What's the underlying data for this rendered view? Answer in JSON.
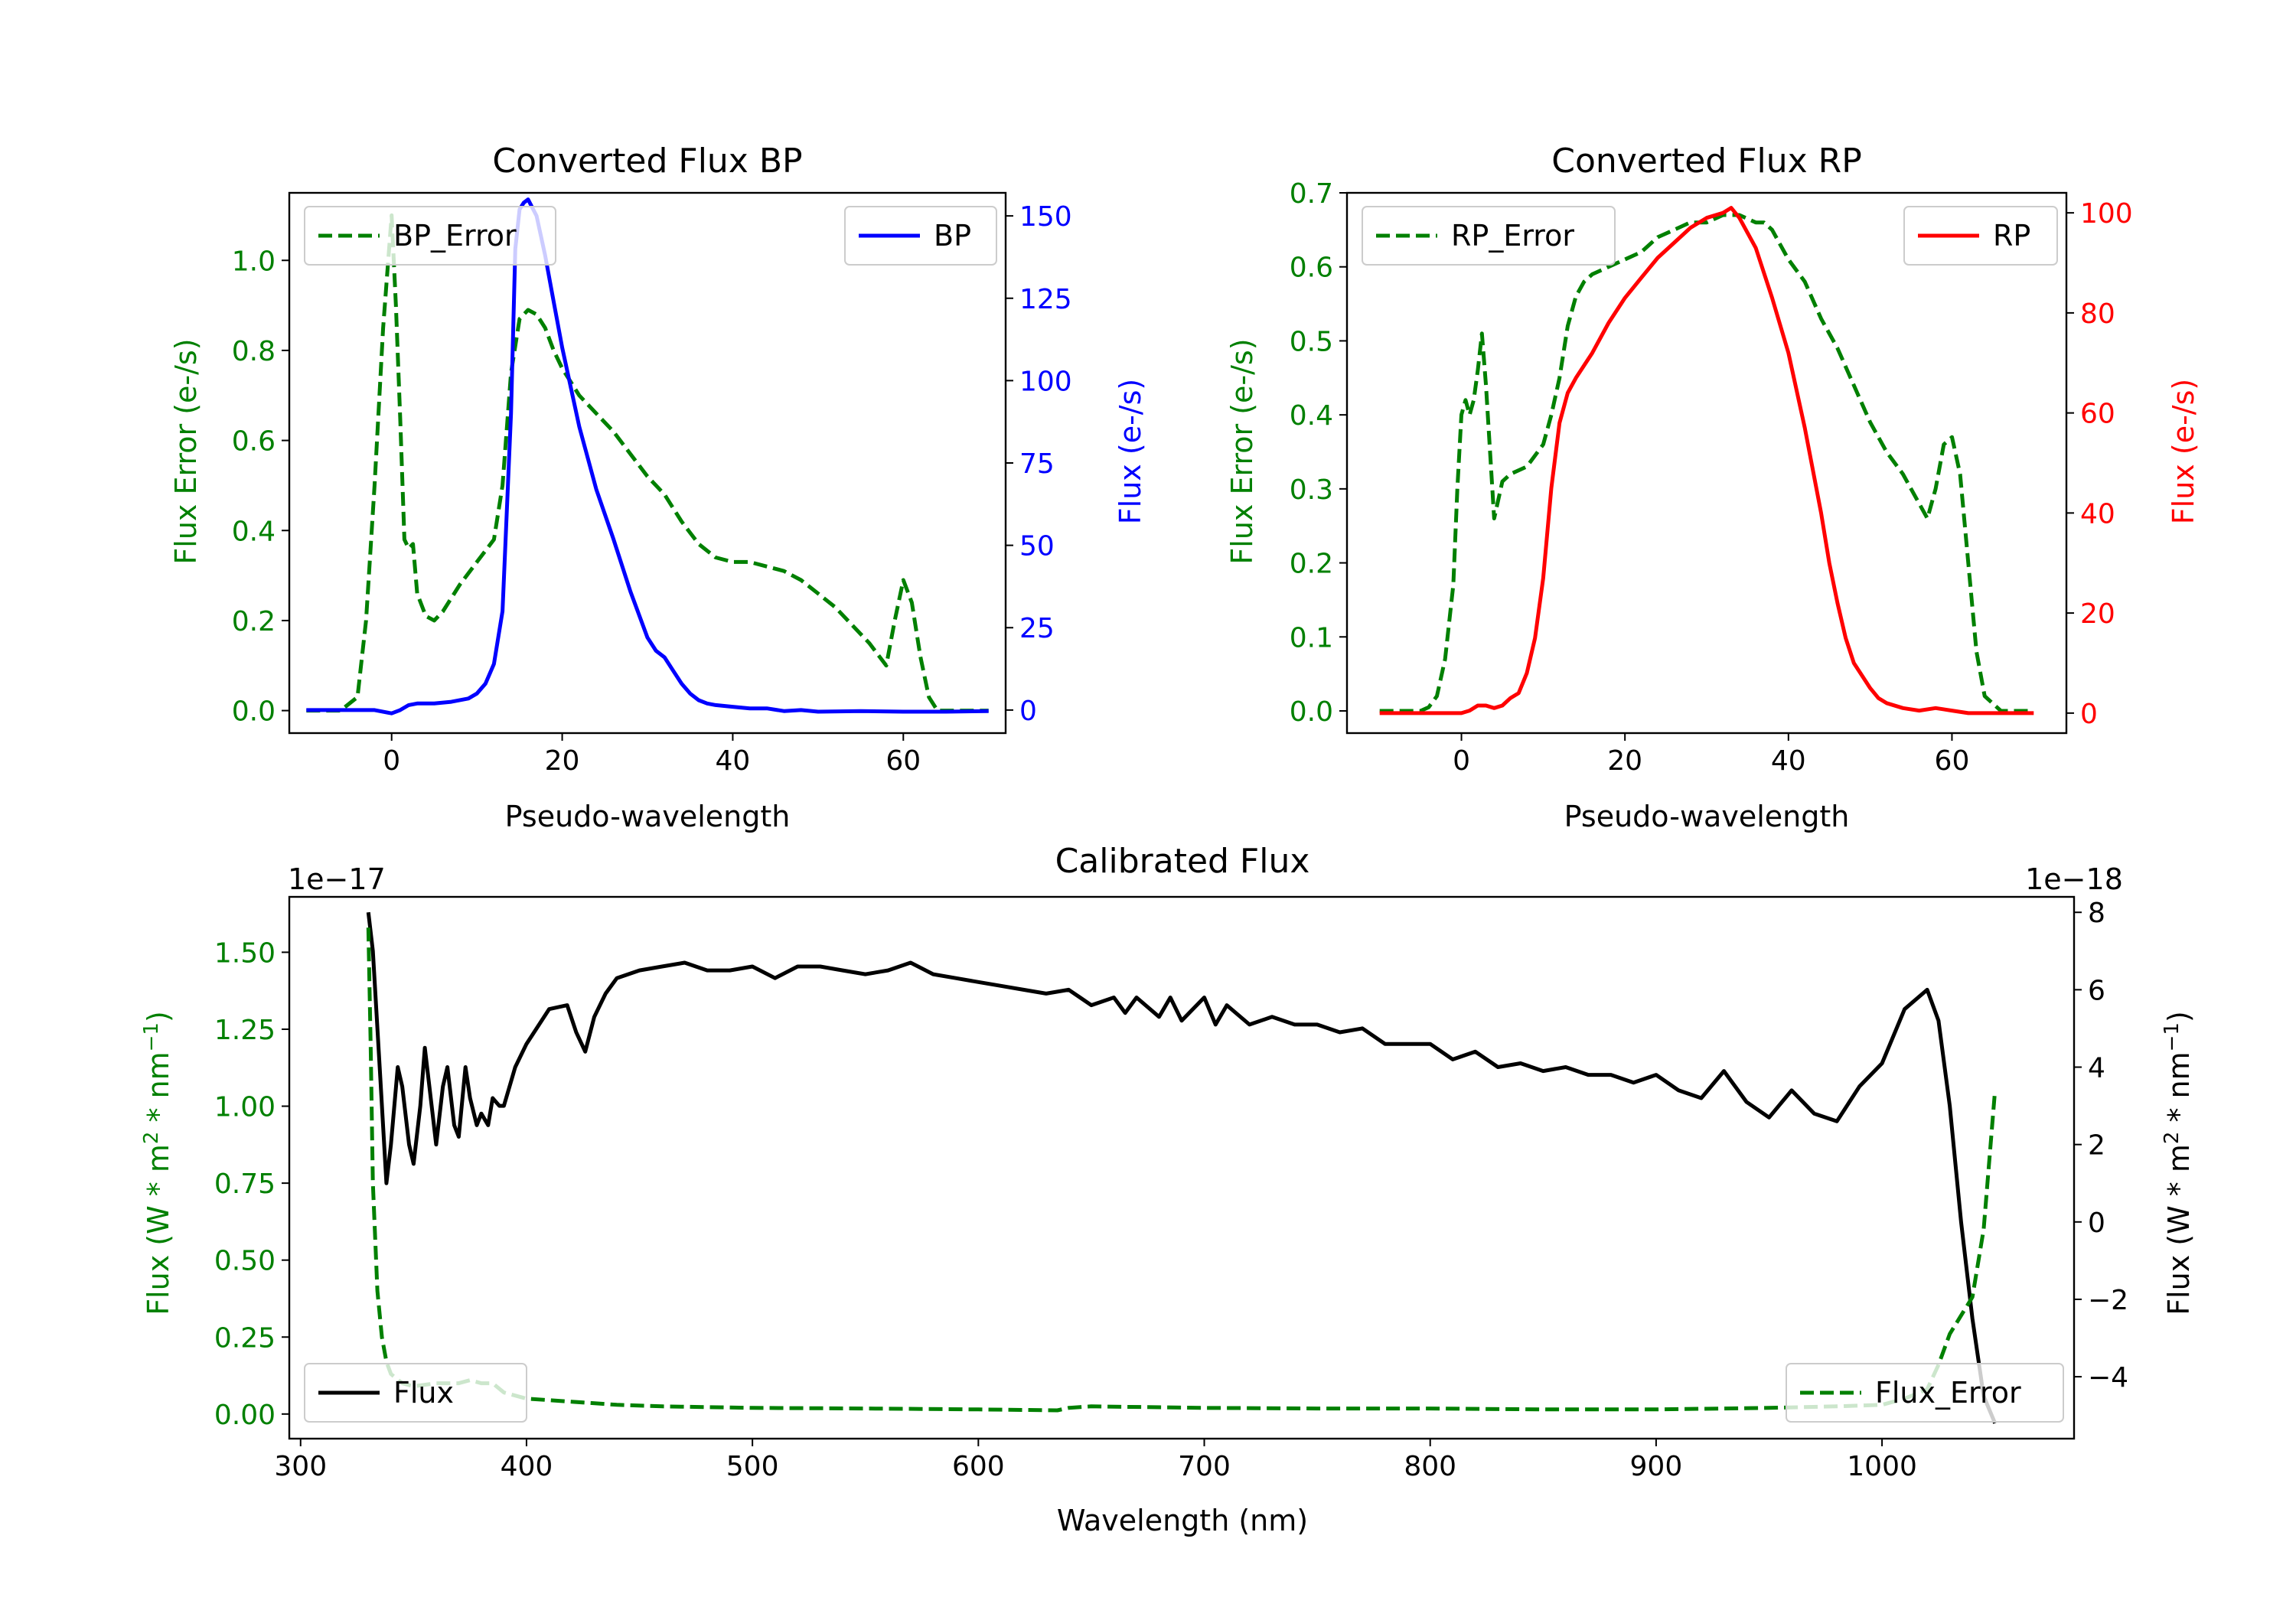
{
  "chart_data": [
    {
      "type": "line",
      "title": "Converted Flux BP",
      "xlabel": "Pseudo-wavelength",
      "xlim": [
        -12,
        72
      ],
      "xticks": [
        0,
        20,
        40,
        60
      ],
      "left_axis": {
        "label": "Flux Error (e-/s)",
        "color": "#008000",
        "ylim": [
          -0.05,
          1.15
        ],
        "ticks": [
          0.0,
          0.2,
          0.4,
          0.6,
          0.8,
          1.0
        ],
        "tick_labels": [
          "0.0",
          "0.2",
          "0.4",
          "0.6",
          "0.8",
          "1.0"
        ]
      },
      "right_axis": {
        "label": "Flux (e-/s)",
        "color": "#0000ff",
        "ylim": [
          -7,
          157
        ],
        "ticks": [
          0,
          25,
          50,
          75,
          100,
          125,
          150
        ],
        "tick_labels": [
          "0",
          "25",
          "50",
          "75",
          "100",
          "125",
          "150"
        ]
      },
      "series": [
        {
          "name": "BP_Error",
          "axis": "left",
          "color": "#008000",
          "dashed": true,
          "x": [
            -10,
            -6,
            -4,
            -3,
            -2,
            -1,
            0,
            0.5,
            1,
            1.5,
            2,
            2.5,
            3,
            4,
            5,
            6,
            8,
            10,
            12,
            13,
            14,
            15,
            16,
            17,
            18,
            19,
            20,
            22,
            24,
            26,
            28,
            30,
            32,
            34,
            36,
            38,
            40,
            42,
            44,
            46,
            48,
            50,
            52,
            54,
            56,
            58,
            59,
            60,
            61,
            62,
            63,
            64,
            66,
            70
          ],
          "values": [
            0.0,
            0.0,
            0.03,
            0.2,
            0.5,
            0.85,
            1.1,
            0.9,
            0.65,
            0.38,
            0.36,
            0.37,
            0.26,
            0.21,
            0.2,
            0.22,
            0.28,
            0.33,
            0.38,
            0.5,
            0.75,
            0.87,
            0.89,
            0.88,
            0.85,
            0.8,
            0.76,
            0.7,
            0.66,
            0.62,
            0.57,
            0.52,
            0.48,
            0.42,
            0.37,
            0.34,
            0.33,
            0.33,
            0.32,
            0.31,
            0.29,
            0.26,
            0.23,
            0.19,
            0.15,
            0.1,
            0.2,
            0.29,
            0.24,
            0.12,
            0.03,
            0.0,
            0.0,
            0.0
          ]
        },
        {
          "name": "BP",
          "axis": "right",
          "color": "#0000ff",
          "dashed": false,
          "x": [
            -10,
            -4,
            -2,
            0,
            1,
            2,
            3,
            5,
            7,
            9,
            10,
            11,
            12,
            13,
            14,
            14.5,
            15,
            15.5,
            16,
            17,
            18,
            19,
            20,
            22,
            24,
            26,
            28,
            30,
            31,
            32,
            33,
            34,
            35,
            36,
            37,
            38,
            40,
            42,
            44,
            46,
            48,
            50,
            55,
            60,
            65,
            70
          ],
          "values": [
            0,
            0,
            0,
            -1,
            0,
            1.5,
            2,
            2,
            2.5,
            3.5,
            5,
            8,
            14,
            30,
            90,
            140,
            152,
            154,
            155,
            150,
            138,
            124,
            110,
            86,
            67,
            52,
            36,
            22,
            18,
            16,
            12,
            8,
            5,
            3,
            2,
            1.5,
            1,
            0.5,
            0.5,
            -0.3,
            0,
            -0.5,
            -0.3,
            -0.5,
            -0.5,
            -0.3
          ]
        }
      ],
      "legends": [
        {
          "entry": "BP_Error",
          "placement": "upper left"
        },
        {
          "entry": "BP",
          "placement": "upper right"
        }
      ]
    },
    {
      "type": "line",
      "title": "Converted Flux RP",
      "xlabel": "Pseudo-wavelength",
      "xlim": [
        -14,
        74
      ],
      "xticks": [
        0,
        20,
        40,
        60
      ],
      "left_axis": {
        "label": "Flux Error (e-/s)",
        "color": "#008000",
        "ylim": [
          -0.03,
          0.7
        ],
        "ticks": [
          0.0,
          0.1,
          0.2,
          0.3,
          0.4,
          0.5,
          0.6,
          0.7
        ],
        "tick_labels": [
          "0.0",
          "0.1",
          "0.2",
          "0.3",
          "0.4",
          "0.5",
          "0.6",
          "0.7"
        ]
      },
      "right_axis": {
        "label": "Flux (e-/s)",
        "color": "#ff0000",
        "ylim": [
          -4,
          104
        ],
        "ticks": [
          0,
          20,
          40,
          60,
          80,
          100
        ],
        "tick_labels": [
          "0",
          "20",
          "40",
          "60",
          "80",
          "100"
        ]
      },
      "series": [
        {
          "name": "RP_Error",
          "axis": "left",
          "color": "#008000",
          "dashed": true,
          "x": [
            -10,
            -5,
            -4,
            -3,
            -2,
            -1,
            -0.5,
            0,
            0.5,
            1,
            1.5,
            2,
            2.5,
            3,
            4,
            5,
            6,
            8,
            10,
            11,
            12,
            13,
            14,
            15,
            16,
            18,
            20,
            22,
            24,
            26,
            28,
            30,
            32,
            34,
            36,
            37,
            38,
            39,
            40,
            42,
            44,
            46,
            48,
            50,
            52,
            54,
            55,
            56,
            57,
            58,
            59,
            60,
            61,
            62,
            63,
            64,
            66,
            70
          ],
          "values": [
            0.0,
            0.0,
            0.005,
            0.02,
            0.07,
            0.17,
            0.3,
            0.4,
            0.42,
            0.4,
            0.42,
            0.46,
            0.51,
            0.44,
            0.26,
            0.31,
            0.32,
            0.33,
            0.36,
            0.4,
            0.45,
            0.52,
            0.56,
            0.58,
            0.59,
            0.6,
            0.61,
            0.62,
            0.64,
            0.65,
            0.66,
            0.66,
            0.67,
            0.67,
            0.66,
            0.66,
            0.65,
            0.63,
            0.61,
            0.58,
            0.53,
            0.49,
            0.44,
            0.39,
            0.35,
            0.32,
            0.3,
            0.28,
            0.26,
            0.3,
            0.36,
            0.37,
            0.32,
            0.2,
            0.08,
            0.02,
            0.0,
            0.0
          ]
        },
        {
          "name": "RP",
          "axis": "right",
          "color": "#ff0000",
          "dashed": false,
          "x": [
            -10,
            -2,
            0,
            1,
            2,
            3,
            4,
            5,
            6,
            7,
            8,
            9,
            10,
            11,
            12,
            13,
            14,
            16,
            18,
            20,
            22,
            24,
            26,
            28,
            30,
            32,
            33,
            34,
            35,
            36,
            38,
            40,
            42,
            44,
            45,
            46,
            47,
            48,
            50,
            51,
            52,
            54,
            56,
            58,
            60,
            62,
            70
          ],
          "values": [
            0,
            0,
            0,
            0.5,
            1.5,
            1.5,
            1,
            1.5,
            3,
            4,
            8,
            15,
            27,
            45,
            58,
            64,
            67,
            72,
            78,
            83,
            87,
            91,
            94,
            97,
            99,
            100,
            101,
            99,
            96,
            93,
            83,
            72,
            57,
            40,
            30,
            22,
            15,
            10,
            5,
            3,
            2,
            1,
            0.5,
            1,
            0.5,
            0,
            0
          ]
        }
      ],
      "legends": [
        {
          "entry": "RP_Error",
          "placement": "upper left"
        },
        {
          "entry": "RP",
          "placement": "upper right"
        }
      ]
    },
    {
      "type": "line",
      "title": "Calibrated Flux",
      "xlabel": "Wavelength (nm)",
      "xlim": [
        295,
        1085
      ],
      "xticks": [
        300,
        400,
        500,
        600,
        700,
        800,
        900,
        1000
      ],
      "left_axis": {
        "label": "Flux (W * m² * nm⁻¹)",
        "label_parts": [
          "Flux (W * m",
          "2",
          " * nm",
          "−1",
          ")"
        ],
        "color": "#008000",
        "offset_text": "1e−17",
        "ylim": [
          -0.08,
          1.68
        ],
        "ticks": [
          0.0,
          0.25,
          0.5,
          0.75,
          1.0,
          1.25,
          1.5
        ],
        "tick_labels": [
          "0.00",
          "0.25",
          "0.50",
          "0.75",
          "1.00",
          "1.25",
          "1.50"
        ]
      },
      "right_axis": {
        "label": "Flux (W * m² * nm⁻¹)",
        "label_parts": [
          "Flux (W * m",
          "2",
          " * nm",
          "−1",
          ")"
        ],
        "color": "#000000",
        "offset_text": "1e−18",
        "ylim": [
          -5.6,
          8.4
        ],
        "ticks": [
          -4,
          -2,
          0,
          2,
          4,
          6,
          8
        ],
        "tick_labels": [
          "−4",
          "−2",
          "0",
          "2",
          "4",
          "6",
          "8"
        ]
      },
      "series": [
        {
          "name": "Flux",
          "axis": "right",
          "color": "#000000",
          "dashed": false,
          "x": [
            330,
            332,
            335,
            338,
            340,
            343,
            345,
            348,
            350,
            353,
            355,
            358,
            360,
            363,
            365,
            368,
            370,
            373,
            375,
            378,
            380,
            383,
            385,
            388,
            390,
            393,
            395,
            400,
            410,
            418,
            422,
            426,
            430,
            435,
            440,
            450,
            460,
            470,
            480,
            490,
            500,
            510,
            520,
            530,
            540,
            550,
            560,
            570,
            580,
            590,
            600,
            610,
            620,
            630,
            640,
            645,
            650,
            660,
            665,
            670,
            680,
            685,
            690,
            700,
            705,
            710,
            720,
            730,
            740,
            750,
            760,
            770,
            780,
            790,
            800,
            810,
            820,
            830,
            840,
            850,
            860,
            870,
            880,
            890,
            900,
            910,
            920,
            930,
            940,
            950,
            960,
            970,
            980,
            990,
            1000,
            1010,
            1020,
            1025,
            1030,
            1035,
            1040,
            1045,
            1050
          ],
          "values": [
            8,
            7,
            4,
            1,
            2,
            4,
            3.5,
            2,
            1.5,
            3,
            4.5,
            3,
            2,
            3.5,
            4,
            2.5,
            2.2,
            4,
            3.2,
            2.5,
            2.8,
            2.5,
            3.2,
            3.0,
            3.0,
            3.6,
            4.0,
            4.6,
            5.5,
            5.6,
            4.9,
            4.4,
            5.3,
            5.9,
            6.3,
            6.5,
            6.6,
            6.7,
            6.5,
            6.5,
            6.6,
            6.3,
            6.6,
            6.6,
            6.5,
            6.4,
            6.5,
            6.7,
            6.4,
            6.3,
            6.2,
            6.1,
            6.0,
            5.9,
            6.0,
            5.8,
            5.6,
            5.8,
            5.4,
            5.8,
            5.3,
            5.8,
            5.2,
            5.8,
            5.1,
            5.6,
            5.1,
            5.3,
            5.1,
            5.1,
            4.9,
            5.0,
            4.6,
            4.6,
            4.6,
            4.2,
            4.4,
            4.0,
            4.1,
            3.9,
            4.0,
            3.8,
            3.8,
            3.6,
            3.8,
            3.4,
            3.2,
            3.9,
            3.1,
            2.7,
            3.4,
            2.8,
            2.6,
            3.5,
            4.1,
            5.5,
            6.0,
            5.2,
            3.0,
            0.0,
            -2.5,
            -4.5,
            -5.2
          ]
        },
        {
          "name": "Flux_Error",
          "axis": "left",
          "color": "#008000",
          "dashed": true,
          "x": [
            330,
            331,
            332,
            334,
            336,
            338,
            340,
            345,
            350,
            360,
            370,
            375,
            380,
            385,
            390,
            400,
            420,
            440,
            460,
            500,
            550,
            600,
            635,
            640,
            650,
            700,
            750,
            800,
            850,
            900,
            950,
            980,
            1000,
            1010,
            1020,
            1025,
            1030,
            1035,
            1040,
            1045,
            1050
          ],
          "values": [
            1.58,
            1.2,
            0.75,
            0.4,
            0.25,
            0.17,
            0.13,
            0.1,
            0.09,
            0.1,
            0.1,
            0.11,
            0.1,
            0.1,
            0.07,
            0.05,
            0.04,
            0.03,
            0.025,
            0.02,
            0.018,
            0.015,
            0.012,
            0.02,
            0.025,
            0.02,
            0.018,
            0.018,
            0.015,
            0.015,
            0.02,
            0.025,
            0.03,
            0.05,
            0.08,
            0.16,
            0.26,
            0.32,
            0.38,
            0.6,
            1.05
          ]
        }
      ],
      "legends": [
        {
          "entry": "Flux",
          "placement": "lower left"
        },
        {
          "entry": "Flux_Error",
          "placement": "lower right"
        }
      ]
    }
  ]
}
